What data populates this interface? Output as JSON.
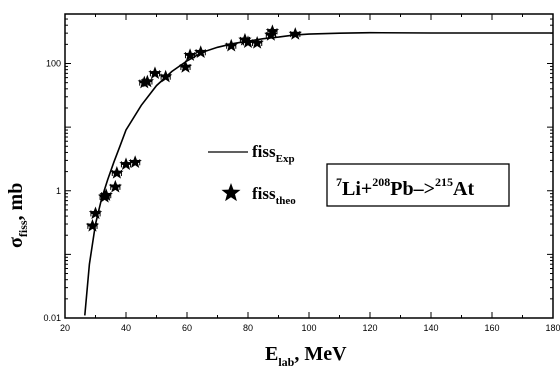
{
  "chart_data": {
    "type": "scatter",
    "xlabel": {
      "main": "E",
      "sub": "lab",
      "rest": ", MeV"
    },
    "ylabel": {
      "main": "σ",
      "sub": "fiss",
      "rest": ", mb"
    },
    "xlim": [
      20,
      180
    ],
    "ylim": [
      0.01,
      600
    ],
    "yscale": "log",
    "x_ticks": [
      20,
      40,
      60,
      80,
      100,
      120,
      140,
      160,
      180
    ],
    "x_tick_labels": [
      "20",
      "40",
      "60",
      "80",
      "100",
      "120",
      "140",
      "160",
      "180"
    ],
    "y_ticks": [
      0.01,
      1,
      100
    ],
    "y_tick_labels": [
      "0.01",
      "1",
      "100"
    ],
    "legend": {
      "line": {
        "main": "fiss",
        "sub": "Exp"
      },
      "star": {
        "main": "fiss",
        "sub": "theo"
      }
    },
    "annotation": {
      "a1": "7",
      "t1": "Li+",
      "a2": "208",
      "t2": "Pb–>",
      "a3": "215",
      "t3": "At"
    },
    "series": [
      {
        "type": "line",
        "x": [
          26.5,
          28,
          30,
          32,
          34,
          36,
          38,
          40,
          45,
          50,
          55,
          60,
          65,
          70,
          75,
          80,
          85,
          90,
          95,
          100,
          110,
          120,
          140,
          160,
          180
        ],
        "y": [
          0.011,
          0.07,
          0.3,
          0.75,
          1.5,
          2.8,
          5,
          9,
          22,
          45,
          75,
          110,
          150,
          180,
          205,
          225,
          245,
          260,
          280,
          290,
          300,
          305,
          302,
          302,
          302
        ]
      },
      {
        "type": "scatter",
        "marker": "star",
        "x": [
          29,
          30,
          33,
          33.5,
          36.5,
          37,
          40,
          43,
          46,
          47,
          49.5,
          53,
          59.5,
          61,
          64.5,
          74.5,
          79,
          80,
          83,
          87.5,
          88,
          95.5
        ],
        "y": [
          0.28,
          0.44,
          0.8,
          0.85,
          1.15,
          1.9,
          2.6,
          2.8,
          50,
          52,
          70,
          62,
          88,
          135,
          150,
          190,
          235,
          215,
          210,
          280,
          320,
          290
        ],
        "xerr": 1.5
      }
    ]
  }
}
